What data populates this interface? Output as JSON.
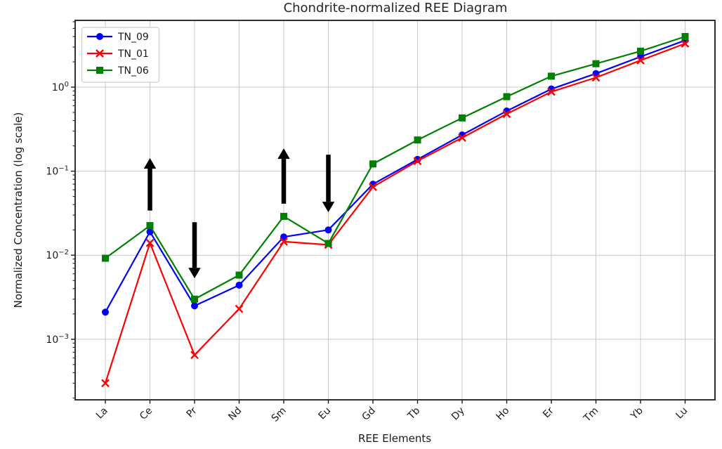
{
  "chart_data": {
    "type": "line",
    "title": "Chondrite-normalized REE Diagram",
    "xlabel": "REE Elements",
    "ylabel": "Normalized Concentration (log scale)",
    "y_scale": "log",
    "ylim": [
      0.00019,
      6.3
    ],
    "grid": true,
    "legend_position": "upper left",
    "categories": [
      "La",
      "Ce",
      "Pr",
      "Nd",
      "Sm",
      "Eu",
      "Gd",
      "Tb",
      "Dy",
      "Ho",
      "Er",
      "Tm",
      "Yb",
      "Lu"
    ],
    "y_major_ticks": [
      {
        "base": "10",
        "exponent": "0",
        "value": 1
      },
      {
        "base": "10",
        "exponent": "−1",
        "value": 0.1
      },
      {
        "base": "10",
        "exponent": "−2",
        "value": 0.01
      },
      {
        "base": "10",
        "exponent": "−3",
        "value": 0.001
      }
    ],
    "series": [
      {
        "name": "TN_09",
        "color": "#0000ff",
        "marker": "circle",
        "values": [
          0.0021,
          0.019,
          0.0025,
          0.0044,
          0.0165,
          0.02,
          0.07,
          0.138,
          0.27,
          0.52,
          0.95,
          1.45,
          2.3,
          3.6
        ]
      },
      {
        "name": "TN_01",
        "color": "#ff0000",
        "marker": "x",
        "values": [
          0.0003,
          0.014,
          0.00065,
          0.0023,
          0.0145,
          0.0133,
          0.065,
          0.132,
          0.25,
          0.48,
          0.88,
          1.3,
          2.08,
          3.3
        ]
      },
      {
        "name": "TN_06",
        "color": "#008000",
        "marker": "square",
        "values": [
          0.0092,
          0.0225,
          0.003,
          0.0058,
          0.029,
          0.0138,
          0.122,
          0.235,
          0.43,
          0.77,
          1.35,
          1.9,
          2.68,
          4.0
        ]
      }
    ],
    "annotations": [
      {
        "name": "ce-up-arrow",
        "element": "Ce",
        "direction": "up",
        "value_from": 0.034,
        "value_to": 0.143,
        "color": "#000000"
      },
      {
        "name": "pr-down-arrow",
        "element": "Pr",
        "direction": "down",
        "value_from": 0.0247,
        "value_to": 0.0053,
        "color": "#000000"
      },
      {
        "name": "sm-up-arrow",
        "element": "Sm",
        "direction": "up",
        "value_from": 0.041,
        "value_to": 0.187,
        "color": "#000000"
      },
      {
        "name": "eu-down-arrow",
        "element": "Eu",
        "direction": "down",
        "value_from": 0.157,
        "value_to": 0.0324,
        "color": "#000000"
      }
    ],
    "colors": {
      "grid": "#c8c8c8",
      "spine": "#1a1a1a",
      "text": "#1a1a1a",
      "title": "#262626",
      "legend_border": "#cccccc",
      "background": "#ffffff"
    }
  }
}
